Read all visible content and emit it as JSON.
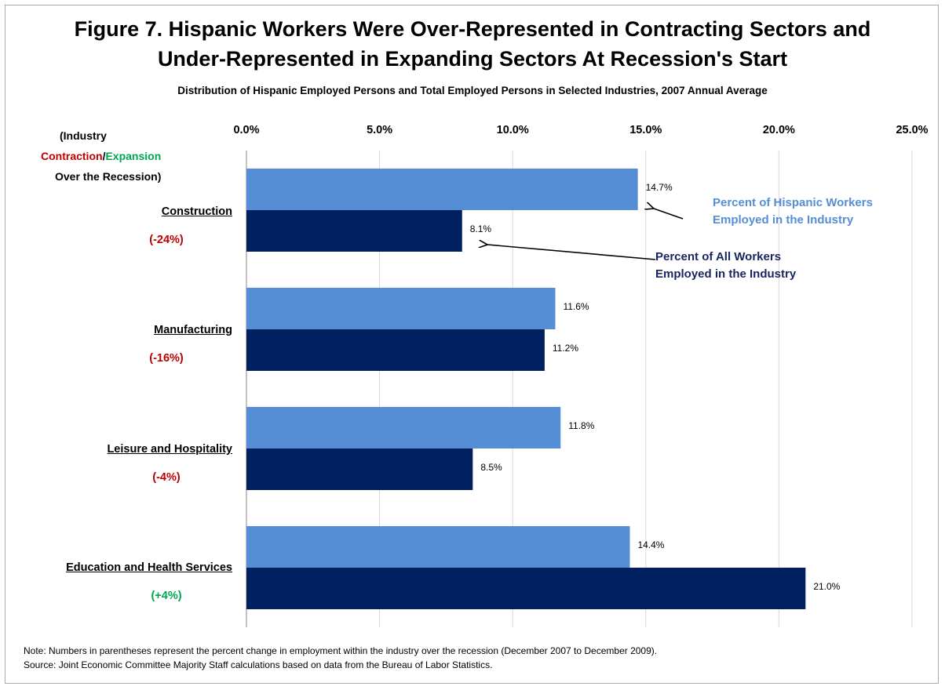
{
  "title_line1": "Figure 7. Hispanic Workers Were Over-Represented in Contracting Sectors and",
  "title_line2": "Under-Represented in Expanding Sectors At Recession's Start",
  "subtitle": "Distribution of Hispanic Employed Persons and Total Employed Persons in Selected Industries, 2007 Annual Average",
  "header": {
    "line1": "(Industry",
    "contraction": "Contraction",
    "slash": "/",
    "expansion": "Expansion",
    "line3": "Over the Recession)"
  },
  "industries": [
    {
      "label": "Construction",
      "change": "(-24%)"
    },
    {
      "label": "Manufacturing",
      "change": "(-16%)"
    },
    {
      "label": "Leisure and Hospitality",
      "change": "(-4%)"
    },
    {
      "label": "Education and Health Services",
      "change": "(+4%)"
    }
  ],
  "callouts": {
    "hispanic_line1": "Percent of Hispanic Workers",
    "hispanic_line2": "Employed in the Industry",
    "all_line1": "Percent of All Workers",
    "all_line2": "Employed in the Industry"
  },
  "note_line1": "Note: Numbers in parentheses represent the percent change in employment within the industry over the recession (December 2007 to December 2009).",
  "note_line2": "Source: Joint Economic Committee Majority Staff calculations based on data from the Bureau of Labor Statistics.",
  "colors": {
    "hispanic": "#558ed5",
    "all": "#002060",
    "contraction": "#c00000",
    "expansion": "#00a650"
  },
  "chart_data": {
    "type": "bar",
    "orientation": "horizontal",
    "categories": [
      "Construction",
      "Manufacturing",
      "Leisure and Hospitality",
      "Education and Health Services"
    ],
    "series": [
      {
        "name": "Percent of Hispanic Workers Employed in the Industry",
        "values": [
          14.7,
          11.6,
          11.8,
          14.4
        ],
        "labels": [
          "14.7%",
          "11.6%",
          "11.8%",
          "14.4%"
        ]
      },
      {
        "name": "Percent of All Workers Employed in the Industry",
        "values": [
          8.1,
          11.2,
          8.5,
          21.0
        ],
        "labels": [
          "8.1%",
          "11.2%",
          "8.5%",
          "21.0%"
        ]
      }
    ],
    "xlim": [
      0,
      25
    ],
    "xticks": [
      0,
      5,
      10,
      15,
      20,
      25
    ],
    "xtick_labels": [
      "0.0%",
      "5.0%",
      "10.0%",
      "15.0%",
      "20.0%",
      "25.0%"
    ],
    "axis_position": "top",
    "grid": true
  }
}
